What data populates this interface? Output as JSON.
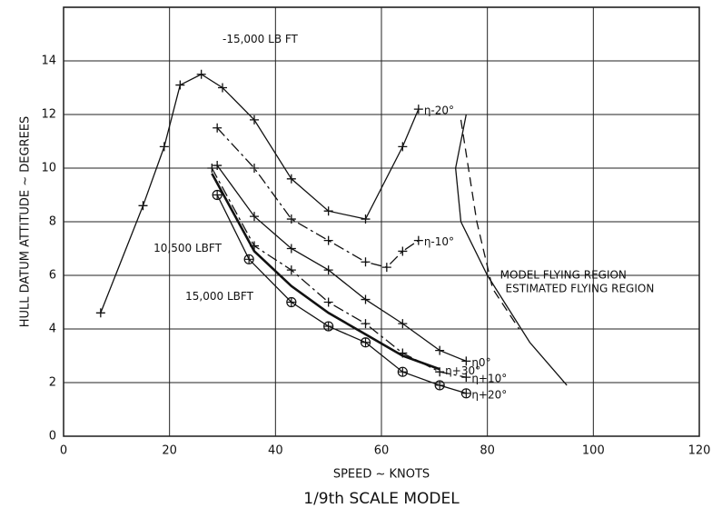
{
  "chart_data": {
    "type": "line",
    "x_label": "SPEED ~ KNOTS",
    "subtitle": "1/9th SCALE MODEL",
    "y_label": "HULL DATUM ATTITUDE ~ DEGREES",
    "xlim": [
      0,
      120
    ],
    "xticks": [
      0,
      20,
      40,
      60,
      80,
      100,
      120
    ],
    "ylim": [
      0,
      16
    ],
    "yticks": [
      0,
      2,
      4,
      6,
      8,
      10,
      12,
      14
    ],
    "grid": true,
    "series": [
      {
        "name": "η-20°",
        "color": "#111111",
        "dash": "solid",
        "marker": "plus",
        "x": [
          7,
          15,
          19,
          22,
          26,
          30,
          36,
          43,
          50,
          57,
          64,
          67
        ],
        "values": [
          4.6,
          8.6,
          10.8,
          13.1,
          13.5,
          13,
          11.8,
          9.6,
          8.4,
          8.1,
          10.8,
          12.2
        ]
      },
      {
        "name": "η-10°",
        "color": "#111111",
        "dash": "dashdot",
        "marker": "plus",
        "x": [
          29,
          36,
          43,
          50,
          57,
          61,
          64,
          67
        ],
        "values": [
          11.5,
          10,
          8.1,
          7.3,
          6.5,
          6.3,
          6.9,
          7.3
        ]
      },
      {
        "name": "η0°",
        "color": "#111111",
        "dash": "solid",
        "marker": "plus",
        "x": [
          29,
          36,
          43,
          50,
          57,
          64,
          71,
          76
        ],
        "values": [
          10.1,
          8.2,
          7,
          6.2,
          5.1,
          4.2,
          3.2,
          2.8
        ]
      },
      {
        "name": "η+10°",
        "color": "#111111",
        "dash": "dashdot",
        "marker": "plus",
        "x": [
          28,
          36,
          43,
          50,
          57,
          64,
          71,
          76
        ],
        "values": [
          10,
          7.1,
          6.2,
          5,
          4.2,
          3.1,
          2.4,
          2.2
        ]
      },
      {
        "name": "η+20°",
        "color": "#111111",
        "dash": "solid",
        "marker": "circle-plus",
        "x": [
          29,
          35,
          43,
          50,
          57,
          64,
          71,
          76
        ],
        "values": [
          9,
          6.6,
          5,
          4.1,
          3.5,
          2.4,
          1.9,
          1.6
        ]
      },
      {
        "name": "η+30°",
        "color": "#111111",
        "dash": "thick",
        "marker": "none",
        "x": [
          28,
          36,
          43,
          50,
          57,
          64,
          71
        ],
        "values": [
          9.8,
          6.9,
          5.6,
          4.6,
          3.8,
          3,
          2.5
        ]
      },
      {
        "name": "ESTIMATED FLYING REGION",
        "color": "#111111",
        "dash": "dashed",
        "marker": "none",
        "x": [
          75,
          78,
          81,
          86
        ],
        "values": [
          11.8,
          8,
          5.5,
          4
        ]
      },
      {
        "name": "MODEL FLYING REGION",
        "color": "#111111",
        "dash": "solid",
        "marker": "none",
        "x": [
          76,
          74,
          75,
          80,
          88,
          95
        ],
        "values": [
          12,
          10,
          8,
          6,
          3.5,
          1.9
        ]
      }
    ],
    "annotations": [
      {
        "text": "-15,000 LB FT",
        "x": 30,
        "y": 14.8
      },
      {
        "text": "10,500 LBFT",
        "x": 17,
        "y": 7
      },
      {
        "text": "15,000 LBFT",
        "x": 23,
        "y": 5.2
      }
    ]
  }
}
